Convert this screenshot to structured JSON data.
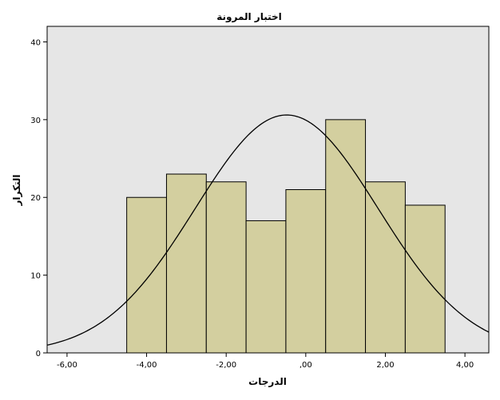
{
  "chart_data": {
    "type": "bar",
    "title": "اختبار المرونة",
    "xlabel": "الدرجات",
    "ylabel": "التكرار",
    "xlim": [
      -6.5,
      4.6
    ],
    "ylim": [
      0,
      42
    ],
    "bins": [
      {
        "x0": -4.5,
        "x1": -3.5,
        "count": 20
      },
      {
        "x0": -3.5,
        "x1": -2.5,
        "count": 23
      },
      {
        "x0": -2.5,
        "x1": -1.5,
        "count": 22
      },
      {
        "x0": -1.5,
        "x1": -0.5,
        "count": 17
      },
      {
        "x0": -0.5,
        "x1": 0.5,
        "count": 21
      },
      {
        "x0": 0.5,
        "x1": 1.5,
        "count": 30
      },
      {
        "x0": 1.5,
        "x1": 2.5,
        "count": 22
      },
      {
        "x0": 2.5,
        "x1": 3.5,
        "count": 19
      }
    ],
    "x_ticks": [
      {
        "value": -6,
        "label": "-6,00"
      },
      {
        "value": -4,
        "label": "-4,00"
      },
      {
        "value": -2,
        "label": "-2,00"
      },
      {
        "value": 0,
        "label": ",00"
      },
      {
        "value": 2,
        "label": "2,00"
      },
      {
        "value": 4,
        "label": "4,00"
      }
    ],
    "y_ticks": [
      {
        "value": 0,
        "label": "0"
      },
      {
        "value": 10,
        "label": "10"
      },
      {
        "value": 20,
        "label": "20"
      },
      {
        "value": 30,
        "label": "30"
      },
      {
        "value": 40,
        "label": "40"
      }
    ],
    "normal_curve": {
      "mean": -0.48,
      "sd": 2.3,
      "peak": 30.6
    },
    "colors": {
      "plot_background": "#e6e6e6",
      "bar_fill": "#d3cf9f",
      "bar_stroke": "#000000",
      "curve": "#000000"
    },
    "grid": false,
    "legend": "none"
  }
}
